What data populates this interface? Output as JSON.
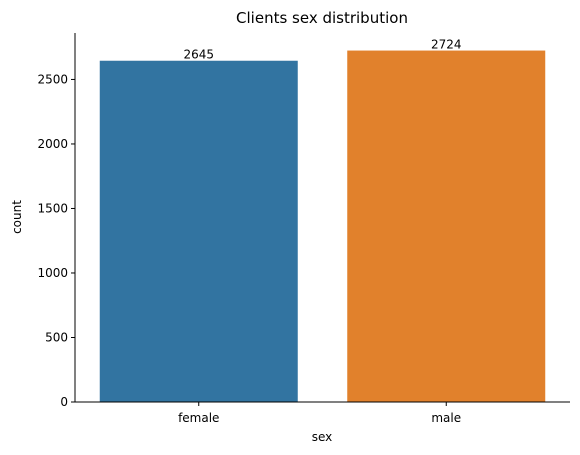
{
  "chart_data": {
    "type": "bar",
    "title": "Clients sex distribution",
    "xlabel": "sex",
    "ylabel": "count",
    "categories": [
      "female",
      "male"
    ],
    "values": [
      2645,
      2724
    ],
    "data_labels": [
      "2645",
      "2724"
    ],
    "ylim": [
      0,
      2860
    ],
    "yticks": [
      0,
      500,
      1000,
      1500,
      2000,
      2500
    ],
    "colors": [
      "#3274a1",
      "#e1812c"
    ],
    "grid": false,
    "legend": "none"
  }
}
